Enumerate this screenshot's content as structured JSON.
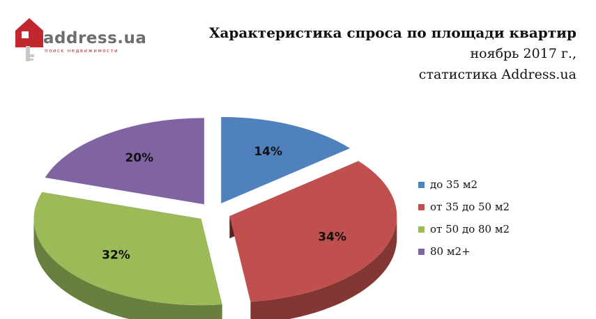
{
  "logo": {
    "name": "address.ua",
    "tagline": "поиск недвижимости",
    "brand_color": "#c0282d"
  },
  "title": "Характеристика спроса по площади квартир",
  "subtitle_lines": [
    "ноябрь 2017 г.,",
    "статистика Address.ua"
  ],
  "chart_data": {
    "type": "pie",
    "style": "3d-exploded",
    "legend_position": "right",
    "series": [
      {
        "values": [
          14,
          34,
          32,
          20
        ],
        "data_labels": [
          "14%",
          "34%",
          "32%",
          "20%"
        ]
      }
    ],
    "categories": [
      "до 35 м2",
      "от 35 до 50 м2",
      "от 50 до 80 м2",
      "80 м2+"
    ],
    "colors": [
      "#4f81bd",
      "#c0504d",
      "#9bbb59",
      "#8064a2"
    ],
    "unit": "%"
  }
}
